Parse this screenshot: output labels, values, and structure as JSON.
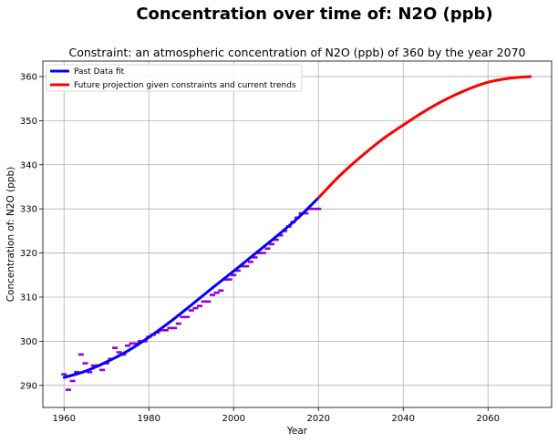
{
  "chart_data": {
    "type": "line",
    "title": "Concentration over time of: N2O (ppb)",
    "subtitle": "Constraint: an atmospheric concentration of N2O (ppb) of 360 by the year 2070",
    "xlabel": "Year",
    "ylabel": "Concentration of: N2O (ppb)",
    "xlim": [
      1955,
      2075
    ],
    "ylim": [
      285,
      363.5
    ],
    "xticks": [
      1960,
      1980,
      2000,
      2020,
      2040,
      2060
    ],
    "yticks": [
      290,
      300,
      310,
      320,
      330,
      340,
      350,
      360
    ],
    "grid": true,
    "legend_position": "top-left",
    "legend": [
      "Past Data fit",
      "Future projection given constraints and current trends"
    ],
    "colors": {
      "past_fit": "#0000ff",
      "projection": "#ff0000",
      "observed": "#9400d3"
    },
    "observed_points": {
      "x": [
        1960,
        1961,
        1962,
        1963,
        1964,
        1965,
        1966,
        1967,
        1968,
        1969,
        1970,
        1971,
        1972,
        1973,
        1974,
        1975,
        1976,
        1977,
        1978,
        1979,
        1980,
        1981,
        1982,
        1983,
        1984,
        1985,
        1986,
        1987,
        1988,
        1989,
        1990,
        1991,
        1992,
        1993,
        1994,
        1995,
        1996,
        1997,
        1998,
        1999,
        2000,
        2001,
        2002,
        2003,
        2004,
        2005,
        2006,
        2007,
        2008,
        2009,
        2010,
        2011,
        2012,
        2013,
        2014,
        2015,
        2016,
        2017,
        2018,
        2019,
        2020
      ],
      "y": [
        292.5,
        289,
        291,
        293,
        297,
        295,
        293,
        294.5,
        294.5,
        293.5,
        295,
        296,
        298.5,
        297.5,
        297,
        299,
        299.5,
        299.5,
        300,
        300,
        301,
        301.5,
        302,
        302.5,
        302.5,
        303,
        303,
        304,
        305.5,
        305.5,
        307,
        307.5,
        308,
        309,
        309,
        310.5,
        311,
        311.5,
        314,
        314,
        315,
        316,
        317,
        317,
        318,
        319,
        320,
        320,
        321,
        322,
        323,
        324,
        325,
        326,
        327,
        328,
        329,
        329,
        330,
        330,
        330
      ]
    },
    "series": [
      {
        "name": "Past Data fit",
        "x": [
          1960,
          1965,
          1970,
          1975,
          1980,
          1985,
          1990,
          1995,
          2000,
          2005,
          2010,
          2015,
          2020
        ],
        "y": [
          291.8,
          293.2,
          295.3,
          297.8,
          300.9,
          304.4,
          308.2,
          312.1,
          315.9,
          319.8,
          323.7,
          327.8,
          332.5
        ]
      },
      {
        "name": "Future projection given constraints and current trends",
        "x": [
          2020,
          2025,
          2030,
          2035,
          2040,
          2045,
          2050,
          2055,
          2060,
          2065,
          2070
        ],
        "y": [
          332.5,
          337.5,
          341.8,
          345.7,
          349.0,
          352.1,
          354.8,
          357.0,
          358.7,
          359.6,
          360.0
        ]
      }
    ]
  }
}
